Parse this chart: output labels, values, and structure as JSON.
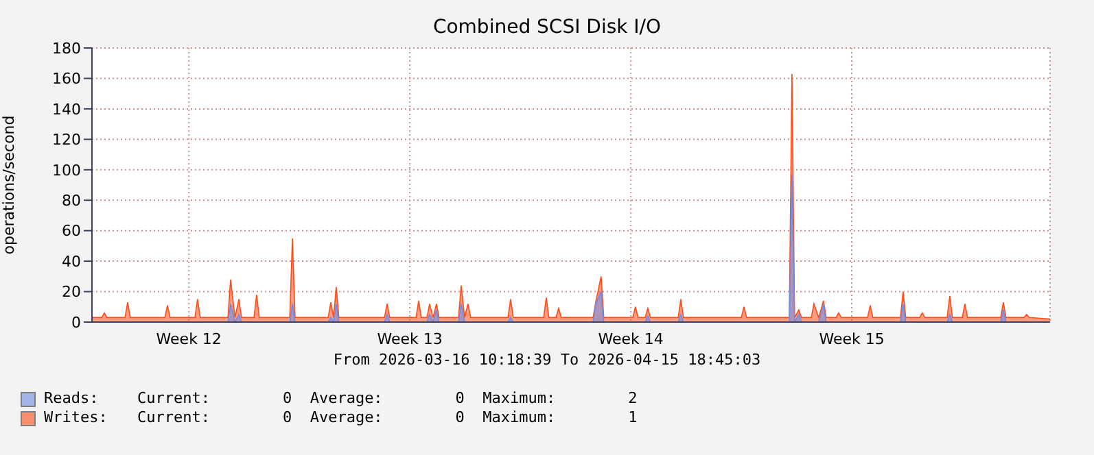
{
  "chart_data": {
    "type": "area",
    "title": "Combined SCSI Disk I/O",
    "ylabel": "operations/second",
    "annotations": [
      "From 2026-03-16 10:18:39 To 2026-04-15 18:45:03",
      "Current:        0  Average:        0  Maximum:        2",
      "Current:        0  Average:        0  Maximum:        1"
    ],
    "x": [
      "2026-03-16T10:18",
      "2026-03-16T17:42",
      "2026-03-16T19:42",
      "2026-03-16T21:42",
      "2026-03-17T11:26",
      "2026-03-17T13:26",
      "2026-03-17T15:26",
      "2026-03-18T17:42",
      "2026-03-18T19:42",
      "2026-03-18T21:42",
      "2026-03-19T16:36",
      "2026-03-19T18:36",
      "2026-03-19T20:36",
      "2026-03-20T17:42",
      "2026-03-20T19:42",
      "2026-03-20T23:00",
      "2026-03-21T02:00",
      "2026-03-21T04:00",
      "2026-03-21T13:30",
      "2026-03-21T15:30",
      "2026-03-21T17:30",
      "2026-03-22T16:42",
      "2026-03-22T18:42",
      "2026-03-22T20:42",
      "2026-03-23T21:54",
      "2026-03-23T23:54",
      "2026-03-24T02:00",
      "2026-03-24T04:00",
      "2026-03-24T06:00",
      "2026-03-25T16:42",
      "2026-03-25T18:42",
      "2026-03-25T20:42",
      "2026-03-26T16:42",
      "2026-03-26T18:42",
      "2026-03-26T20:42",
      "2026-03-27T01:00",
      "2026-03-27T03:00",
      "2026-03-27T05:36",
      "2026-03-27T08:12",
      "2026-03-27T10:12",
      "2026-03-28T01:00",
      "2026-03-28T03:00",
      "2026-03-28T05:36",
      "2026-03-28T08:12",
      "2026-03-28T10:12",
      "2026-03-29T14:36",
      "2026-03-29T16:36",
      "2026-03-29T18:36",
      "2026-03-30T17:42",
      "2026-03-30T19:42",
      "2026-03-30T21:42",
      "2026-03-31T03:06",
      "2026-03-31T05:06",
      "2026-03-31T07:06",
      "2026-04-01T07:18",
      "2026-04-01T09:18",
      "2026-04-01T13:24",
      "2026-04-01T15:24",
      "2026-04-02T13:30",
      "2026-04-02T15:30",
      "2026-04-02T17:30",
      "2026-04-02T22:54",
      "2026-04-03T00:54",
      "2026-04-03T02:54",
      "2026-04-04T00:00",
      "2026-04-04T02:00",
      "2026-04-04T04:00",
      "2026-04-06T00:00",
      "2026-04-06T02:00",
      "2026-04-06T04:00",
      "2026-04-07T12:30",
      "2026-04-07T14:30",
      "2026-04-07T16:30",
      "2026-04-07T19:42",
      "2026-04-07T21:42",
      "2026-04-08T05:12",
      "2026-04-08T07:12",
      "2026-04-08T10:50",
      "2026-04-08T14:30",
      "2026-04-08T16:30",
      "2026-04-09T00:00",
      "2026-04-09T02:00",
      "2026-04-09T04:00",
      "2026-04-10T00:00",
      "2026-04-10T02:00",
      "2026-04-10T04:00",
      "2026-04-11T01:00",
      "2026-04-11T03:00",
      "2026-04-11T05:00",
      "2026-04-11T15:36",
      "2026-04-11T17:36",
      "2026-04-11T19:36",
      "2026-04-12T12:30",
      "2026-04-12T14:30",
      "2026-04-12T16:30",
      "2026-04-13T00:00",
      "2026-04-13T02:00",
      "2026-04-13T04:00",
      "2026-04-14T05:12",
      "2026-04-14T07:12",
      "2026-04-14T09:12",
      "2026-04-14T22:54",
      "2026-04-15T00:54",
      "2026-04-15T02:54",
      "2026-04-15T18:45"
    ],
    "series": [
      {
        "name": "Writes:",
        "color": "#ff4d1a",
        "values": [
          3,
          3,
          6,
          3,
          3,
          13,
          3,
          3,
          11,
          3,
          3,
          15,
          3,
          3,
          28,
          3,
          15,
          3,
          3,
          18,
          3,
          3,
          55,
          3,
          3,
          13,
          3,
          23,
          3,
          3,
          12,
          3,
          3,
          14,
          3,
          3,
          12,
          3,
          12,
          3,
          3,
          24,
          3,
          12,
          3,
          3,
          15,
          3,
          3,
          16,
          3,
          3,
          9,
          3,
          3,
          13,
          30,
          3,
          3,
          10,
          3,
          3,
          9,
          3,
          3,
          15,
          3,
          3,
          10,
          3,
          3,
          163,
          3,
          8,
          3,
          3,
          12,
          3,
          14,
          3,
          3,
          6,
          3,
          3,
          11,
          3,
          3,
          20,
          3,
          3,
          6,
          3,
          3,
          17,
          3,
          3,
          12,
          3,
          3,
          13,
          3,
          3,
          5,
          3,
          2
        ]
      },
      {
        "name": "Reads:",
        "color": "#6c8ce6",
        "values": [
          0,
          0,
          0,
          0,
          0,
          0,
          0,
          0,
          0,
          0,
          0,
          0,
          0,
          0,
          12,
          0,
          5,
          0,
          0,
          0,
          0,
          0,
          12,
          0,
          0,
          3,
          0,
          12,
          0,
          0,
          5,
          0,
          0,
          0,
          0,
          0,
          5,
          0,
          8,
          0,
          0,
          12,
          0,
          0,
          0,
          0,
          3,
          0,
          0,
          0,
          0,
          0,
          0,
          0,
          0,
          12,
          20,
          0,
          0,
          0,
          0,
          0,
          4,
          0,
          0,
          5,
          0,
          0,
          0,
          0,
          0,
          97,
          0,
          5,
          0,
          0,
          0,
          0,
          12,
          0,
          0,
          0,
          0,
          0,
          0,
          0,
          0,
          12,
          0,
          0,
          0,
          0,
          0,
          5,
          0,
          0,
          0,
          0,
          0,
          8,
          0,
          0,
          0,
          0,
          0
        ]
      }
    ],
    "xlim": [
      "2026-03-16T10:18",
      "2026-04-15T18:45"
    ],
    "xticks": [
      {
        "value": "2026-03-19T12:00",
        "label": "Week 12"
      },
      {
        "value": "2026-03-26T12:00",
        "label": "Week 13"
      },
      {
        "value": "2026-04-02T12:00",
        "label": "Week 14"
      },
      {
        "value": "2026-04-09T12:00",
        "label": "Week 15"
      }
    ],
    "ylim": [
      0,
      180
    ],
    "yticks": [
      0,
      20,
      40,
      60,
      80,
      100,
      120,
      140,
      160,
      180
    ],
    "grid": true,
    "legend": "bottom left"
  }
}
